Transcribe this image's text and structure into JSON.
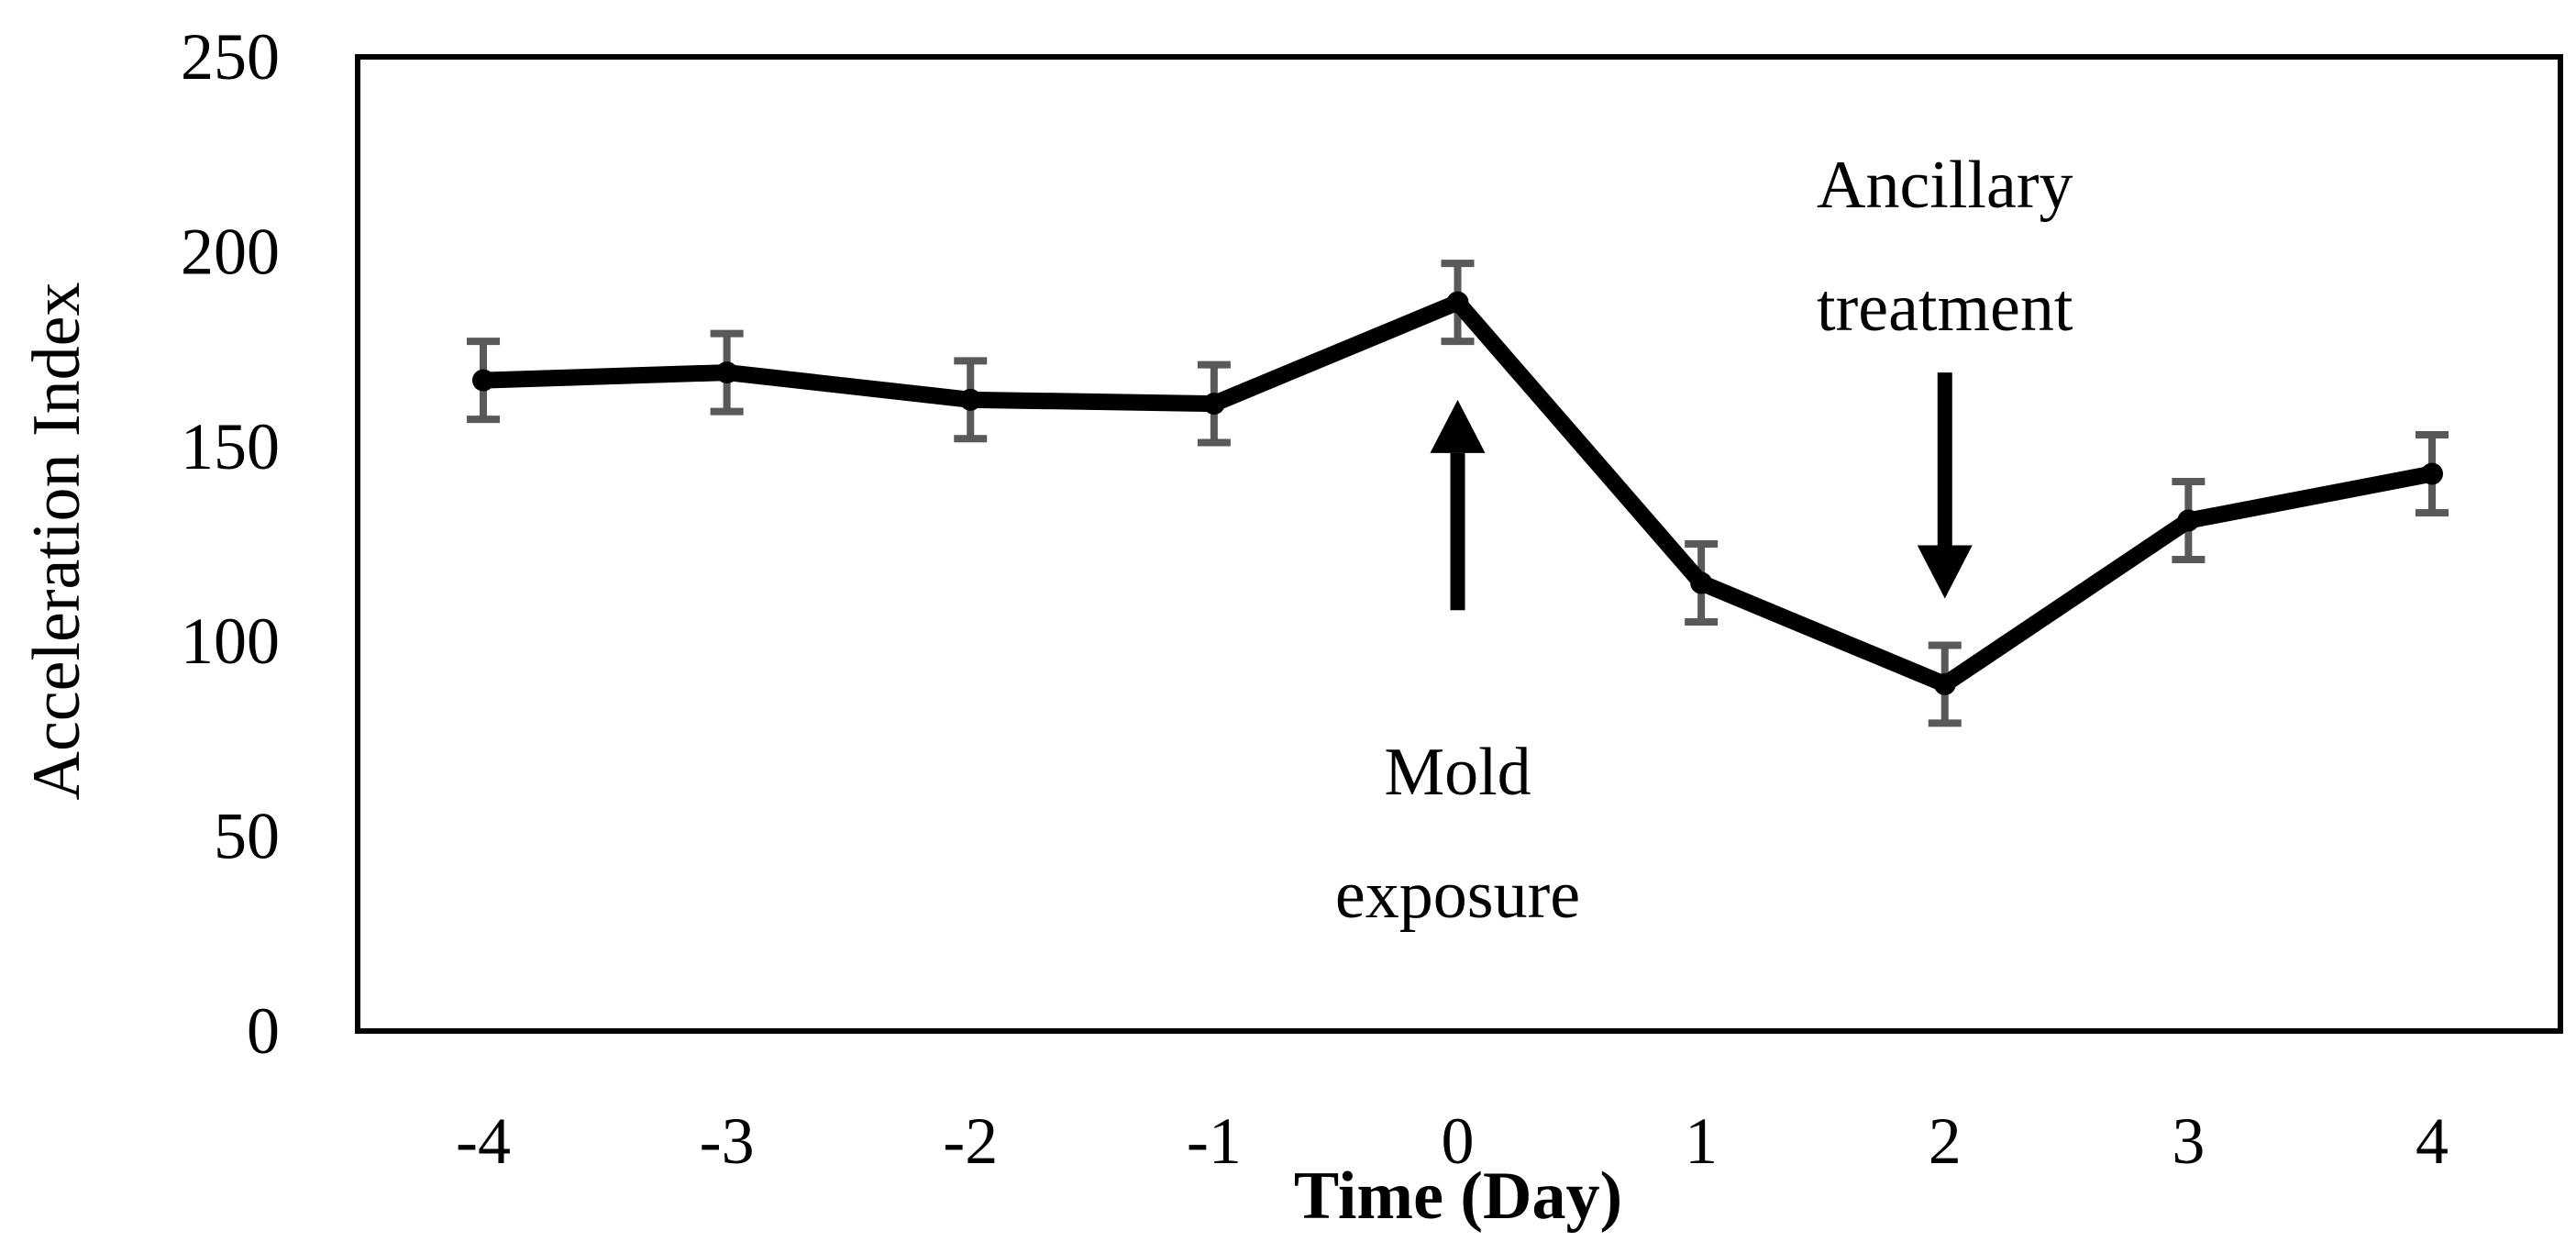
{
  "chart_data": {
    "type": "line",
    "title": "",
    "xlabel": "Time (Day)",
    "ylabel": "Acceleration Index",
    "x": [
      -4,
      -3,
      -2,
      -1,
      0,
      1,
      2,
      3,
      4
    ],
    "x_tick_labels": [
      "-4",
      "-3",
      "-2",
      "-1",
      "0",
      "1",
      "2",
      "3",
      "4"
    ],
    "y_ticks": [
      0,
      50,
      100,
      150,
      200,
      250
    ],
    "y_tick_labels": [
      "0",
      "50",
      "100",
      "150",
      "200",
      "250"
    ],
    "ylim": [
      0,
      250
    ],
    "grid": false,
    "legend": "none",
    "series": [
      {
        "name": "Acceleration Index",
        "color": "#000000",
        "values": [
          167,
          169,
          162,
          161,
          187,
          115,
          89,
          131,
          143
        ],
        "error": [
          10,
          10,
          10,
          10,
          10,
          10,
          10,
          10,
          10
        ],
        "error_color": "#595959"
      }
    ],
    "annotations": [
      {
        "name": "mold-exposure",
        "lines": [
          "Mold",
          "exposure"
        ],
        "x": 0,
        "arrow_direction": "up",
        "arrow_from": 108,
        "arrow_to": 162
      },
      {
        "name": "ancillary-treatment",
        "lines": [
          "Ancillary",
          "treatment"
        ],
        "x": 2,
        "arrow_direction": "down",
        "arrow_from": 169,
        "arrow_to": 111
      }
    ]
  }
}
